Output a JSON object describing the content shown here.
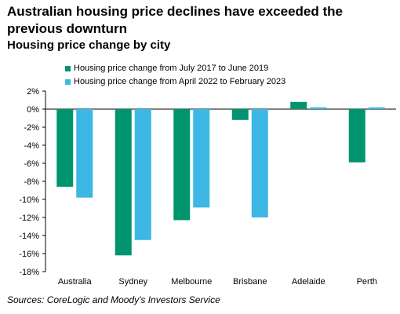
{
  "chart_data": {
    "type": "bar",
    "title": "Australian housing price declines have exceeded the previous downturn",
    "subtitle": "Housing price change by city",
    "categories": [
      "Australia",
      "Sydney",
      "Melbourne",
      "Brisbane",
      "Adelaide",
      "Perth"
    ],
    "series": [
      {
        "name": "Housing price change from July 2017 to June 2019",
        "color": "#00956F",
        "values": [
          -8.6,
          -16.2,
          -12.3,
          -1.2,
          0.8,
          -5.9
        ]
      },
      {
        "name": "Housing price change from April 2022 to February 2023",
        "color": "#3DB7E4",
        "values": [
          -9.8,
          -14.5,
          -10.9,
          -12.0,
          0.2,
          0.2
        ]
      }
    ],
    "ylim": [
      -18,
      2
    ],
    "yticks": [
      2,
      0,
      -2,
      -4,
      -6,
      -8,
      -10,
      -12,
      -14,
      -16,
      -18
    ],
    "ytick_suffix": "%",
    "legend_position": "top-left",
    "grid": false,
    "xlabel": "",
    "ylabel": ""
  },
  "source": "Sources: CoreLogic and Moody's Investors Service"
}
